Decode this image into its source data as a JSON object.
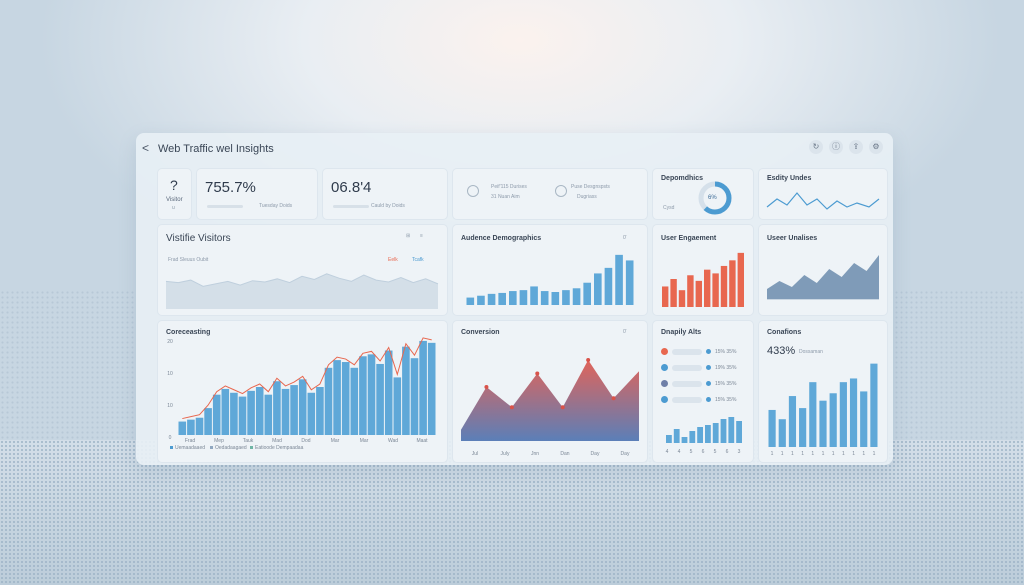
{
  "window": {
    "title": "Web Traffic wel Insights",
    "back": "<"
  },
  "toolbar": {
    "icons": [
      "refresh-icon",
      "info-icon",
      "share-icon",
      "settings-icon"
    ]
  },
  "kpi": [
    {
      "label_top": "?",
      "label_bottom": "Visitor",
      "sub": "u"
    },
    {
      "value": "755.7%",
      "caption": "Tuesday Doids"
    },
    {
      "value": "06.8'4",
      "caption": "Cauld by Doids"
    },
    {
      "line1": "Peif'115 Durises",
      "line2": "31 Nuan Aim"
    },
    {
      "line1": "Puse Desgnspsts",
      "line2": "Dugriass"
    }
  ],
  "demographics": {
    "title": "Depomdhics",
    "center": "6%",
    "caption": "Cysd",
    "percent": 0.62
  },
  "entity_trends": {
    "title": "Esdity Undes"
  },
  "visitors": {
    "title": "Vistifie Visitors",
    "legend_left": "Frad Sleuus Oubit",
    "legend_mid": "Eelk",
    "legend_right": "Tcafk",
    "icons": [
      "grid-icon",
      "list-icon"
    ]
  },
  "audience": {
    "title": "Audence Demographics",
    "menu": "0̆"
  },
  "engagement": {
    "title": "User Engaement"
  },
  "user_trend": {
    "title": "Useer Unalises"
  },
  "forecasting": {
    "title": "Coreceasting",
    "yticks": [
      "20",
      "10",
      "10",
      "0"
    ],
    "xticks": [
      "Frad",
      "Mep",
      "Tauk",
      "Mad",
      "Dod",
      "Mar",
      "Mar",
      "Wad",
      "Maat"
    ],
    "legend": [
      "Uemaadaaed",
      "Oedadaagaed",
      "Eatioode Dempaadaa"
    ]
  },
  "conversion": {
    "title": "Conversion",
    "menu": "0̆",
    "xticks": [
      "Jul",
      "July",
      "Jnn",
      "Dan",
      "Day",
      "Day"
    ]
  },
  "display": {
    "title": "Dnapily Alts",
    "rows": [
      "15% 35%",
      "19% 35%",
      "15% 35%",
      "15% 35%"
    ],
    "ticks": [
      "4",
      "4",
      "5",
      "6",
      "5",
      "6",
      "3"
    ]
  },
  "conditions": {
    "title": "Conafions",
    "value": "433%",
    "caption": "Dossaman",
    "xticks": [
      "1",
      "1",
      "1",
      "1",
      "1",
      "1",
      "1",
      "1",
      "1",
      "1",
      "1"
    ]
  },
  "chart_data": [
    {
      "type": "area",
      "title": "Vistifie Visitors",
      "values": [
        44,
        42,
        46,
        36,
        40,
        44,
        38,
        45,
        43,
        48,
        42,
        52,
        47,
        56,
        49,
        44,
        54,
        46,
        43,
        50,
        42,
        48,
        40
      ]
    },
    {
      "type": "bar",
      "title": "Audence Demographics",
      "values": [
        8,
        10,
        12,
        13,
        15,
        16,
        20,
        15,
        14,
        16,
        18,
        24,
        34,
        40,
        54,
        48
      ]
    },
    {
      "type": "bar",
      "title": "User Engaement",
      "values": [
        22,
        30,
        18,
        34,
        28,
        40,
        36,
        44,
        50,
        58
      ]
    },
    {
      "type": "area",
      "title": "Useer Unalises",
      "values": [
        10,
        18,
        12,
        24,
        16,
        30,
        22,
        36,
        28,
        44
      ]
    },
    {
      "type": "line",
      "title": "Coreceasting",
      "ylabel": "",
      "values": [
        14,
        16,
        18,
        28,
        42,
        48,
        44,
        40,
        46,
        50,
        42,
        56,
        48,
        52,
        58,
        44,
        50,
        70,
        78,
        76,
        70,
        82,
        84,
        74,
        88,
        60,
        92,
        80,
        98,
        96
      ]
    },
    {
      "type": "area",
      "title": "Conversion",
      "values": [
        10,
        48,
        30,
        60,
        30,
        72,
        38,
        62
      ]
    },
    {
      "type": "bar",
      "title": "Dnapily Alts",
      "values": [
        8,
        14,
        6,
        12,
        16,
        18,
        20,
        24,
        26,
        22
      ]
    },
    {
      "type": "bar",
      "title": "Conafions",
      "values": [
        40,
        30,
        55,
        42,
        70,
        50,
        58,
        70,
        74,
        60,
        90
      ]
    }
  ]
}
